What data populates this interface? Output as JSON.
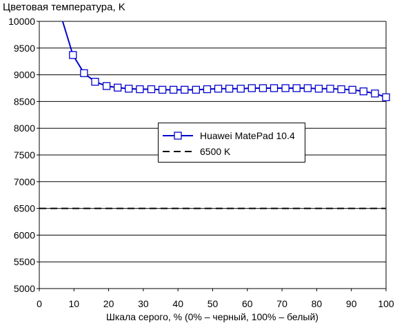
{
  "chart_data": {
    "type": "line",
    "ylabel": "Цветовая температура, K",
    "xlabel": "Шкала серого, % (0% – черный, 100% – белый)",
    "xlim": [
      0,
      100
    ],
    "ylim": [
      5000,
      10000
    ],
    "x_ticks": [
      "0",
      "10",
      "20",
      "30",
      "40",
      "50",
      "60",
      "70",
      "80",
      "90",
      "100"
    ],
    "y_ticks": [
      "5000",
      "5500",
      "6000",
      "6500",
      "7000",
      "7500",
      "8000",
      "8500",
      "9000",
      "9500",
      "10000"
    ],
    "grid": "horizontal",
    "legend_position": "center-right",
    "series": [
      {
        "name": "Huawei MatePad 10.4",
        "color": "#0000cc",
        "marker": "open-square",
        "x": [
          6.5,
          9.7,
          12.9,
          16.1,
          19.4,
          22.6,
          25.8,
          29.0,
          32.3,
          35.5,
          38.7,
          41.9,
          45.2,
          48.4,
          51.6,
          54.8,
          58.1,
          61.3,
          64.5,
          67.7,
          71.0,
          74.2,
          77.4,
          80.6,
          83.9,
          87.1,
          90.3,
          93.5,
          96.8,
          100
        ],
        "values": [
          10050,
          9370,
          9030,
          8870,
          8790,
          8760,
          8740,
          8730,
          8730,
          8720,
          8720,
          8720,
          8720,
          8730,
          8740,
          8740,
          8740,
          8750,
          8750,
          8750,
          8750,
          8750,
          8750,
          8740,
          8740,
          8730,
          8720,
          8690,
          8650,
          8580
        ],
        "markers_from_index": 1
      },
      {
        "name": "6500 K",
        "color": "#000000",
        "style": "dashed",
        "x": [
          0,
          100
        ],
        "values": [
          6500,
          6500
        ]
      }
    ]
  }
}
